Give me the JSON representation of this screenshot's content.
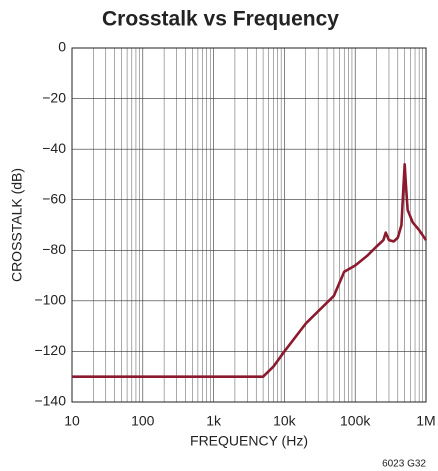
{
  "chart_data": {
    "type": "line",
    "title": "Crosstalk vs Frequency",
    "x_label": "FREQUENCY (Hz)",
    "y_label": "CROSSTALK (dB)",
    "note": "6023 G32",
    "x_scale": "log",
    "grid": true,
    "minor_grid": true,
    "xlim": [
      10,
      1000000
    ],
    "xticks": [
      10,
      100,
      {
        "value": 1000,
        "label": "1k"
      },
      {
        "value": 10000,
        "label": "10k"
      },
      {
        "value": 100000,
        "label": "100k"
      },
      {
        "value": 1000000,
        "label": "1M"
      }
    ],
    "ylim": [
      -140,
      0
    ],
    "yticks": [
      0,
      {
        "value": -20,
        "label": "−20"
      },
      {
        "value": -40,
        "label": "−40"
      },
      {
        "value": -60,
        "label": "−60"
      },
      {
        "value": -80,
        "label": "−80"
      },
      {
        "value": -100,
        "label": "−100"
      },
      {
        "value": -120,
        "label": "−120"
      },
      {
        "value": -140,
        "label": "−140"
      }
    ],
    "x": [
      10,
      100,
      1000,
      5000,
      7000,
      10000,
      20000,
      50000,
      70000,
      100000,
      150000,
      200000,
      250000,
      270000,
      300000,
      350000,
      400000,
      450000,
      480000,
      500000,
      520000,
      550000,
      650000,
      800000,
      1000000
    ],
    "series": [
      {
        "name": "crosstalk",
        "color": "#8b1a2e",
        "values": [
          -130,
          -130,
          -130,
          -130,
          -126,
          -120,
          -109,
          -98,
          -88.5,
          -86,
          -82,
          -78.5,
          -76,
          -73,
          -76,
          -76.5,
          -75,
          -70,
          -55,
          -46,
          -54,
          -64,
          -69,
          -72,
          -76
        ]
      }
    ]
  }
}
